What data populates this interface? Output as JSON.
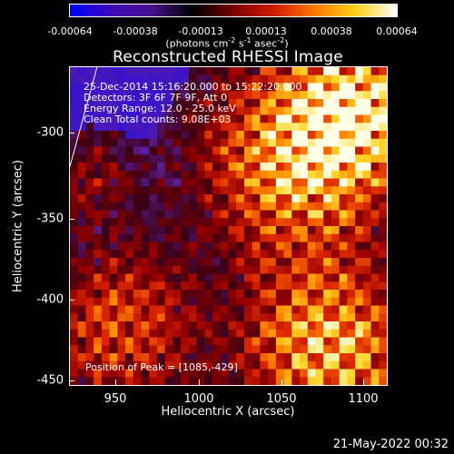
{
  "colorbar": {
    "ticks": [
      "-0.00064",
      "-0.00038",
      "-0.00013",
      "0.00013",
      "0.00038",
      "0.00064"
    ],
    "units_main": "(photons cm",
    "units_exp1": "-2",
    "units_mid": " s",
    "units_exp2": "-1",
    "units_mid2": " asec",
    "units_exp3": "-2",
    "units_end": ")",
    "colors": [
      "#0000ff",
      "#3b0ab8",
      "#44118a",
      "#000000",
      "#7a0000",
      "#d21b00",
      "#ff7a00",
      "#ffd21a",
      "#ffffff"
    ]
  },
  "title": "Reconstructed RHESSI Image",
  "info": {
    "line1": "25-Dec-2014 15:16:20.000 to 15:22:20.000",
    "line2": "Detectors: 3F 6F 7F 9F, Att 0",
    "line3": "Energy Range: 12.0 - 25.0 keV",
    "line4": "Clean     Total counts: 9.08E+03"
  },
  "peak_text": "Position of Peak = [1085,-429]",
  "axes": {
    "xlabel": "Heliocentric X (arcsec)",
    "ylabel": "Heliocentric Y (arcsec)",
    "xticks": [
      "950",
      "1000",
      "1050",
      "1100"
    ],
    "yticks": [
      "-300",
      "-350",
      "-400",
      "-450"
    ]
  },
  "timestamp": "21-May-2022 00:32"
}
